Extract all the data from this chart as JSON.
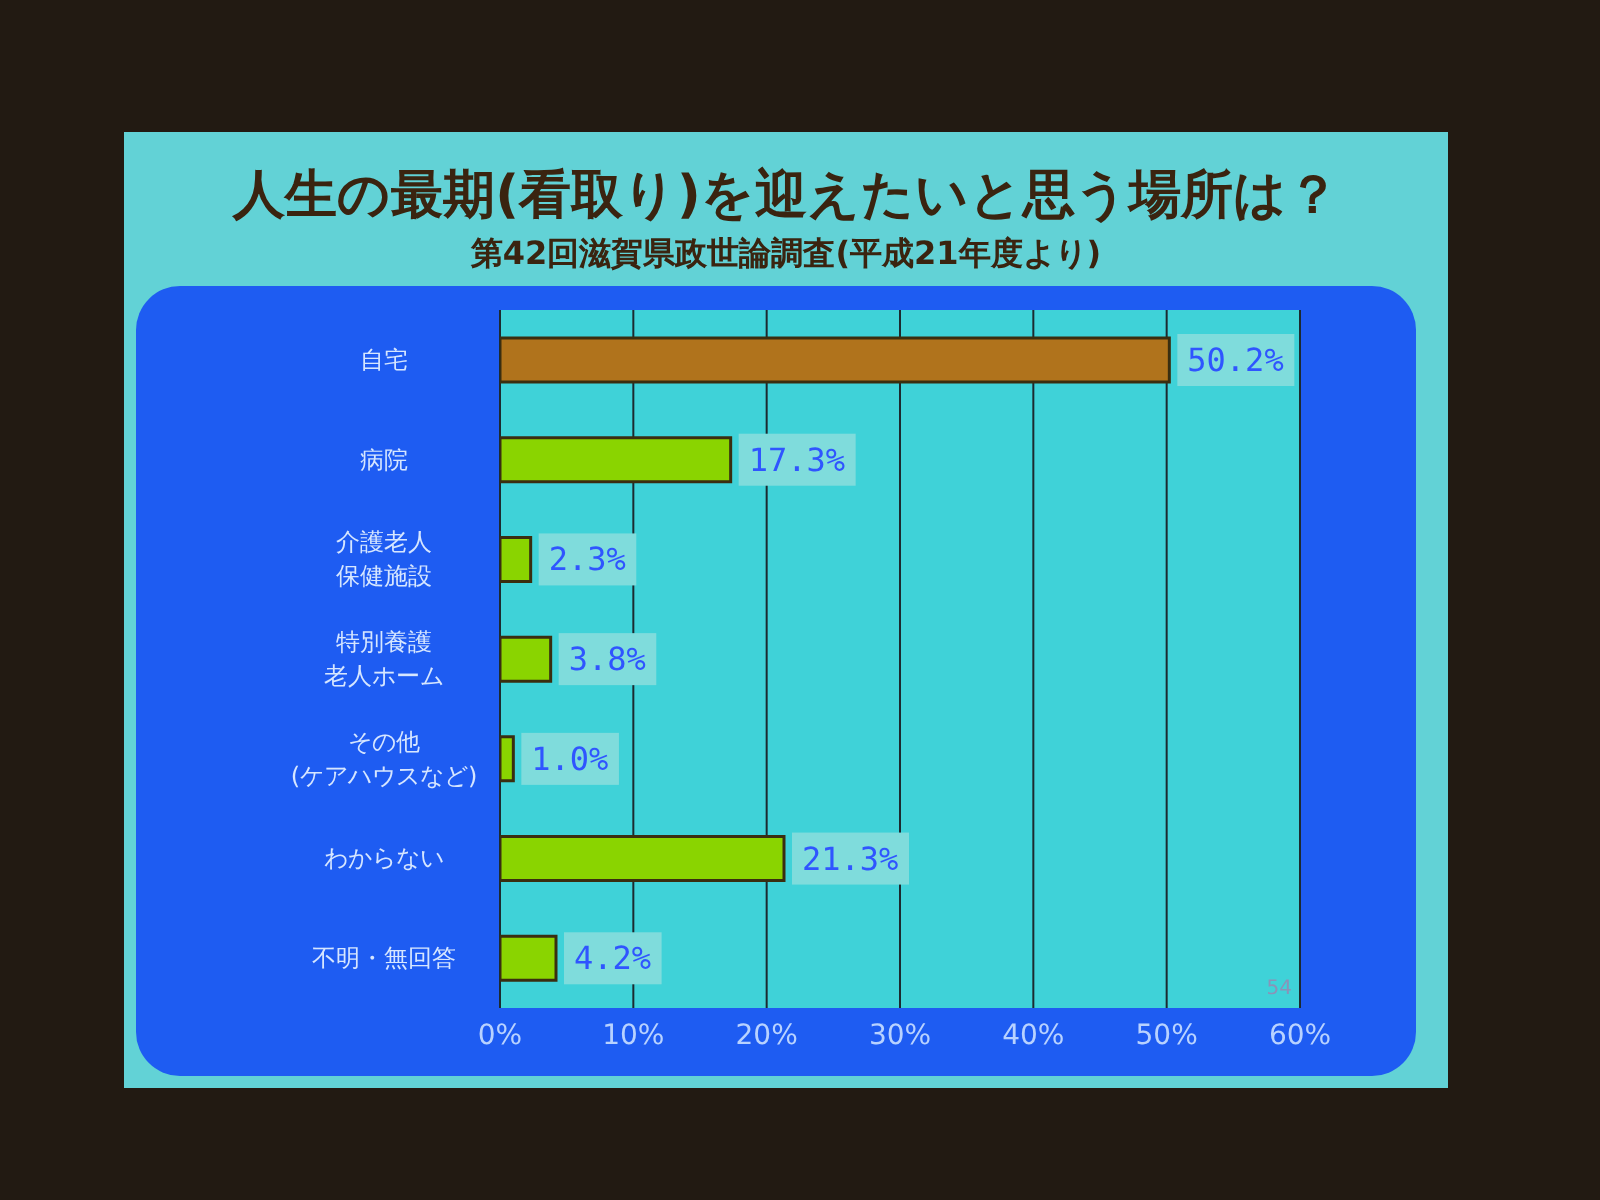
{
  "chart_data": {
    "type": "bar",
    "orientation": "horizontal",
    "title": "人生の最期(看取り)を迎えたいと思う場所は？",
    "subtitle": "第42回滋賀県政世論調査(平成21年度より)",
    "categories": [
      "自宅",
      "病院",
      "介護老人保健施設",
      "特別養護老人ホーム",
      "その他(ケアハウスなど)",
      "わからない",
      "不明・無回答"
    ],
    "values": [
      50.2,
      17.3,
      2.3,
      3.8,
      1.0,
      21.3,
      4.2
    ],
    "colors": [
      "#b0731c",
      "#8ad400",
      "#8ad400",
      "#8ad400",
      "#8ad400",
      "#8ad400",
      "#8ad400"
    ],
    "value_labels": [
      "50.2%",
      "17.3%",
      "2.3%",
      "3.8%",
      "1.0%",
      "21.3%",
      "4.2%"
    ],
    "xlim": [
      0,
      60
    ],
    "xticks": [
      {
        "value": 0,
        "label": "0%"
      },
      {
        "value": 10,
        "label": "10%"
      },
      {
        "value": 20,
        "label": "20%"
      },
      {
        "value": 30,
        "label": "30%"
      },
      {
        "value": 40,
        "label": "40%"
      },
      {
        "value": 50,
        "label": "50%"
      },
      {
        "value": 60,
        "label": "60%"
      }
    ],
    "grid": "x",
    "annotations": [
      "54"
    ]
  }
}
